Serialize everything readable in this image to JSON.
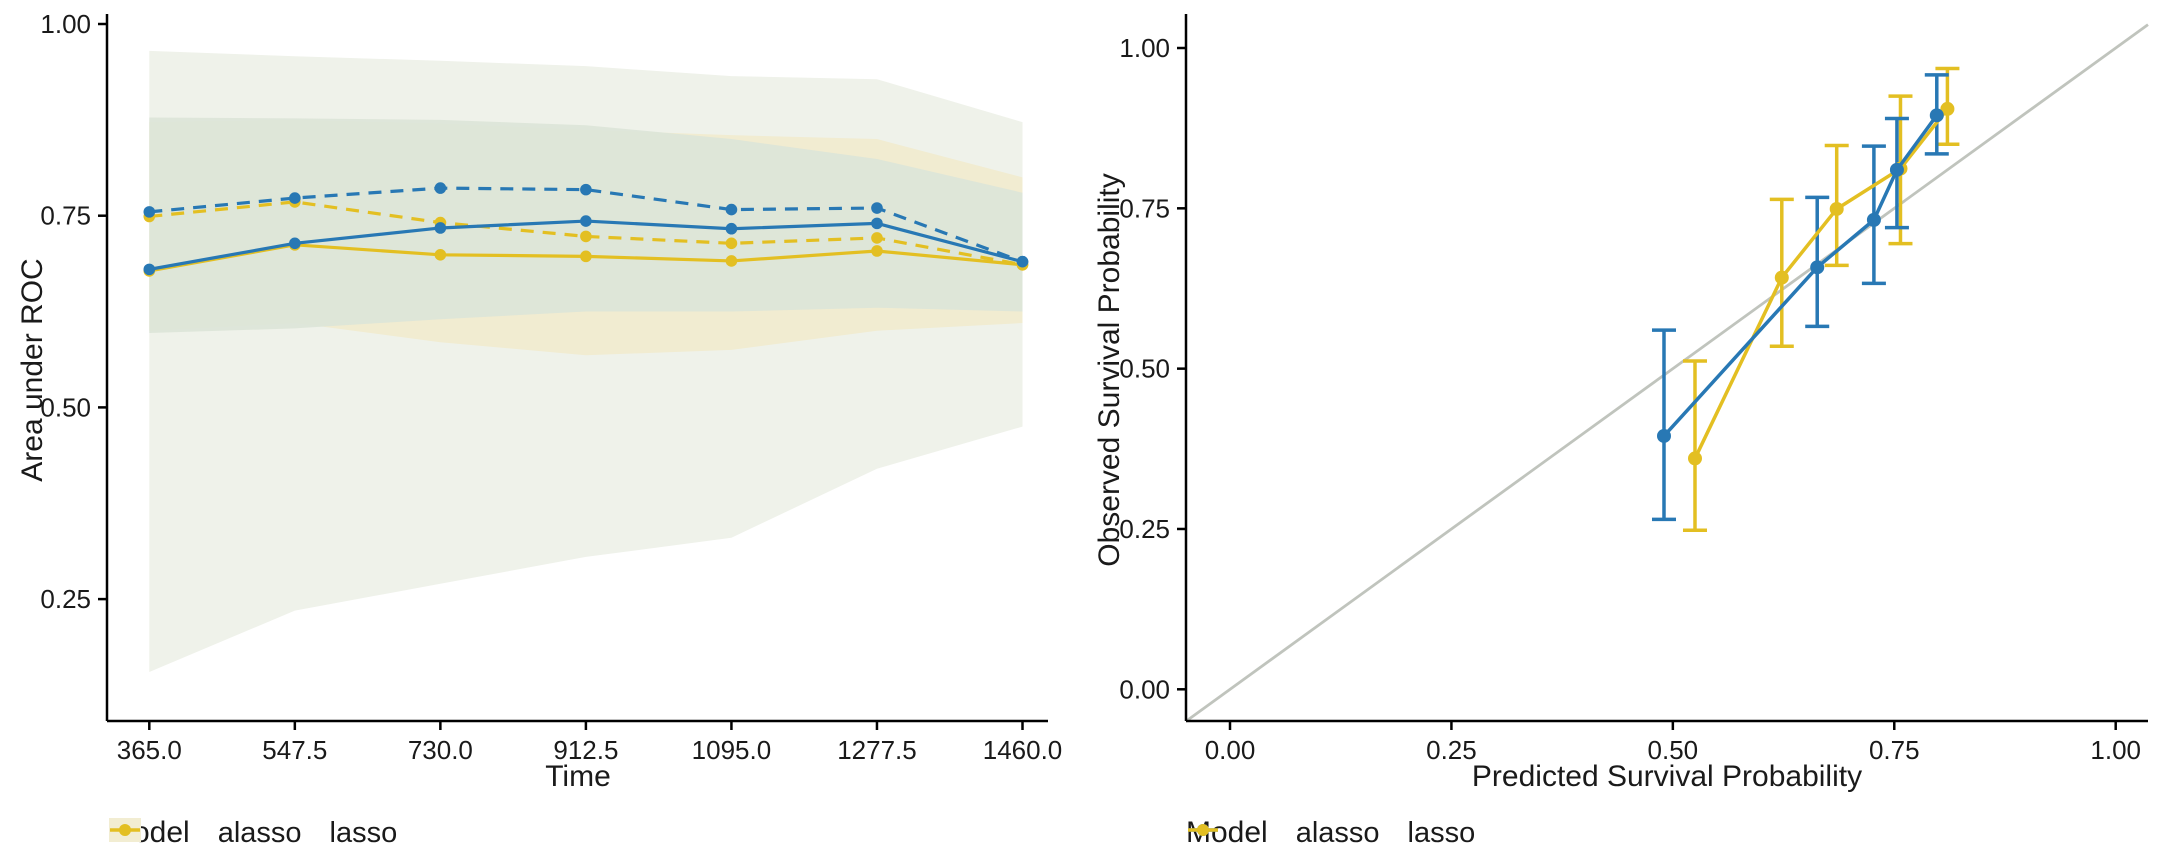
{
  "colors": {
    "alasso": "#2878b4",
    "lasso": "#e3bf22",
    "diagonal": "#c0c4bd",
    "axis": "#000000",
    "text": "#1a1a1a",
    "band_outer": "#eff2ea",
    "band_lasso": "#f1ecd1",
    "band_alasso": "#dce5d8",
    "alasso_key_bg": "#e4ebe0",
    "lasso_key_bg": "#f2edd2"
  },
  "chart_data": [
    {
      "type": "line",
      "title": "",
      "xlabel": "Time",
      "ylabel": "Area under ROC",
      "x_ticks": {
        "values": [
          365.0,
          547.5,
          730.0,
          912.5,
          1095.0,
          1277.5,
          1460.0
        ],
        "labels": [
          "365.0",
          "547.5",
          "730.0",
          "912.5",
          "1095.0",
          "1277.5",
          "1460.0"
        ]
      },
      "y_ticks": {
        "values": [
          1.0,
          0.75,
          0.5,
          0.25
        ],
        "labels": [
          "1.00",
          "0.75",
          "0.50",
          "0.25"
        ]
      },
      "xlim": [
        311,
        1493
      ],
      "ylim": [
        0.09,
        1.01
      ],
      "grid": false,
      "x": [
        365,
        547.5,
        730,
        912.5,
        1095,
        1277.5,
        1460
      ],
      "series": [
        {
          "name": "lasso",
          "linetype": "dashed",
          "color_key": "lasso",
          "values": [
            0.749,
            0.768,
            0.741,
            0.723,
            0.714,
            0.721,
            0.686
          ]
        },
        {
          "name": "alasso",
          "linetype": "dashed",
          "color_key": "alasso",
          "values": [
            0.755,
            0.773,
            0.786,
            0.784,
            0.758,
            0.76,
            0.69
          ]
        },
        {
          "name": "lasso",
          "linetype": "solid",
          "color_key": "lasso",
          "values": [
            0.678,
            0.712,
            0.699,
            0.697,
            0.691,
            0.704,
            0.686
          ]
        },
        {
          "name": "alasso",
          "linetype": "solid",
          "color_key": "alasso",
          "values": [
            0.68,
            0.714,
            0.734,
            0.743,
            0.733,
            0.74,
            0.69
          ]
        }
      ],
      "bands": [
        {
          "name": "outer-confidence-band",
          "color_key": "band_outer",
          "opacity": 1,
          "top": [
            0.965,
            0.958,
            0.952,
            0.945,
            0.932,
            0.928,
            0.872
          ],
          "bottom": [
            0.155,
            0.235,
            0.27,
            0.305,
            0.33,
            0.42,
            0.475
          ]
        },
        {
          "name": "lasso-confidence-band",
          "color_key": "band_lasso",
          "opacity": 1,
          "top": [
            0.872,
            0.875,
            0.87,
            0.862,
            0.855,
            0.85,
            0.8
          ],
          "bottom": [
            0.6,
            0.61,
            0.585,
            0.568,
            0.575,
            0.6,
            0.61
          ]
        },
        {
          "name": "alasso-confidence-band",
          "color_key": "band_alasso",
          "opacity": 0.92,
          "top": [
            0.878,
            0.877,
            0.875,
            0.868,
            0.85,
            0.824,
            0.78
          ],
          "bottom": [
            0.597,
            0.603,
            0.615,
            0.625,
            0.625,
            0.63,
            0.625
          ]
        }
      ],
      "legend": {
        "title": "Model",
        "entries": [
          {
            "label": "alasso",
            "color_key": "alasso",
            "bg_key": "alasso_key_bg"
          },
          {
            "label": "lasso",
            "color_key": "lasso",
            "bg_key": "lasso_key_bg"
          }
        ]
      }
    },
    {
      "type": "scatter",
      "title": "",
      "xlabel": "Predicted Survival Probability",
      "ylabel": "Observed Survival Probability",
      "x_ticks": {
        "values": [
          0.0,
          0.25,
          0.5,
          0.75,
          1.0
        ],
        "labels": [
          "0.00",
          "0.25",
          "0.50",
          "0.75",
          "1.00"
        ]
      },
      "y_ticks": {
        "values": [
          0.0,
          0.25,
          0.5,
          0.75,
          1.0
        ],
        "labels": [
          "0.00",
          "0.25",
          "0.50",
          "0.75",
          "1.00"
        ]
      },
      "xlim": [
        -0.05,
        1.04
      ],
      "ylim": [
        -0.05,
        1.02
      ],
      "grid": false,
      "diagonal_reference": true,
      "series": [
        {
          "name": "lasso",
          "color_key": "lasso",
          "points": [
            {
              "x": 0.525,
              "y": 0.36,
              "lo": 0.248,
              "hi": 0.512
            },
            {
              "x": 0.623,
              "y": 0.642,
              "lo": 0.535,
              "hi": 0.764
            },
            {
              "x": 0.685,
              "y": 0.749,
              "lo": 0.661,
              "hi": 0.848
            },
            {
              "x": 0.757,
              "y": 0.812,
              "lo": 0.695,
              "hi": 0.925
            },
            {
              "x": 0.81,
              "y": 0.905,
              "lo": 0.85,
              "hi": 0.968
            }
          ]
        },
        {
          "name": "alasso",
          "color_key": "alasso",
          "points": [
            {
              "x": 0.49,
              "y": 0.395,
              "lo": 0.265,
              "hi": 0.56
            },
            {
              "x": 0.663,
              "y": 0.658,
              "lo": 0.566,
              "hi": 0.767
            },
            {
              "x": 0.727,
              "y": 0.732,
              "lo": 0.633,
              "hi": 0.847
            },
            {
              "x": 0.753,
              "y": 0.81,
              "lo": 0.72,
              "hi": 0.89
            },
            {
              "x": 0.798,
              "y": 0.895,
              "lo": 0.835,
              "hi": 0.958
            }
          ]
        }
      ],
      "legend": {
        "title": "Model",
        "entries": [
          {
            "label": "alasso",
            "color_key": "alasso",
            "bg_key": null
          },
          {
            "label": "lasso",
            "color_key": "lasso",
            "bg_key": null
          }
        ]
      }
    }
  ]
}
